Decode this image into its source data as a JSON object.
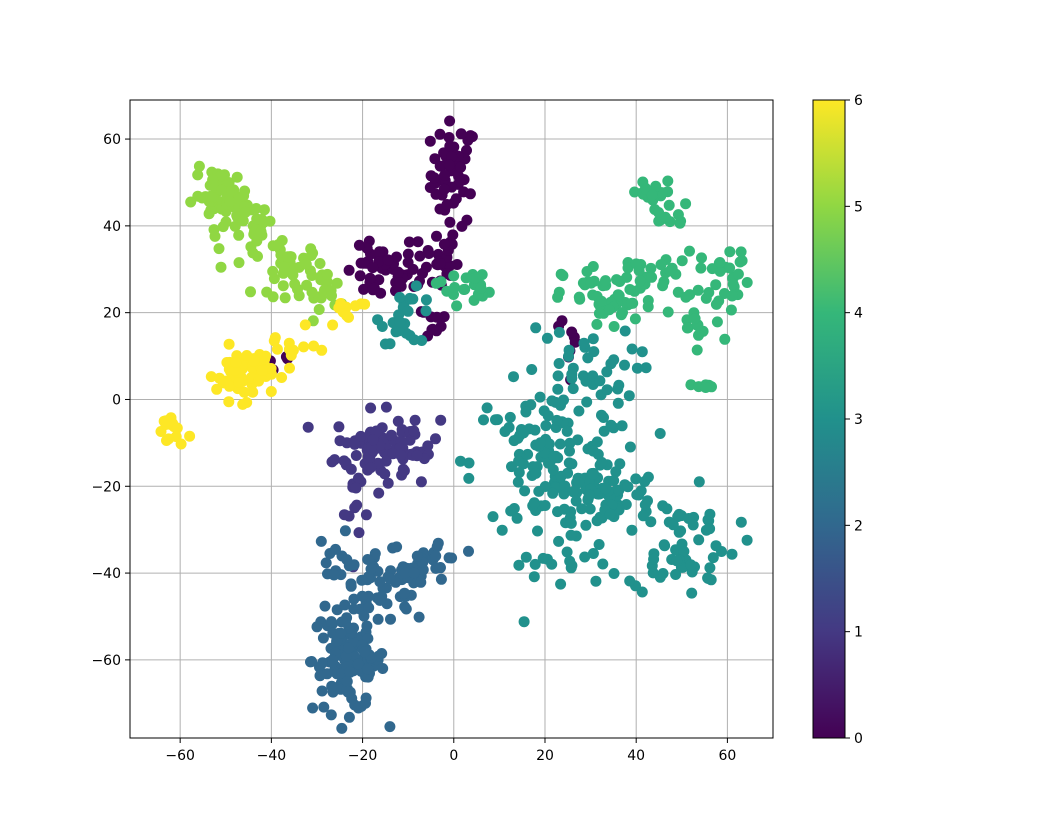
{
  "chart_data": {
    "type": "scatter",
    "title": "",
    "xlabel": "",
    "ylabel": "",
    "xlim": [
      -71,
      70
    ],
    "ylim": [
      -78,
      69
    ],
    "xticks": [
      -60,
      -40,
      -20,
      0,
      20,
      40,
      60
    ],
    "yticks": [
      -60,
      -40,
      -20,
      0,
      20,
      40,
      60
    ],
    "xtick_labels": [
      "−60",
      "−40",
      "−20",
      "0",
      "20",
      "40",
      "60"
    ],
    "ytick_labels": [
      "−60",
      "−40",
      "−20",
      "0",
      "20",
      "40",
      "60"
    ],
    "grid": true,
    "colormap": "viridis",
    "colorbar": {
      "min": 0,
      "max": 6,
      "ticks": [
        0,
        1,
        2,
        3,
        4,
        5,
        6
      ],
      "tick_labels": [
        "0",
        "1",
        "2",
        "3",
        "4",
        "5",
        "6"
      ]
    },
    "clusters": [
      {
        "value": 0,
        "center": [
          0,
          52
        ],
        "spread": [
          2.5,
          6
        ],
        "n": 55
      },
      {
        "value": 0,
        "center": [
          -16,
          29
        ],
        "spread": [
          4,
          3
        ],
        "n": 45
      },
      {
        "value": 0,
        "center": [
          -4,
          32
        ],
        "spread": [
          2.5,
          4
        ],
        "n": 30
      },
      {
        "value": 0,
        "center": [
          -6,
          18
        ],
        "spread": [
          3,
          2
        ],
        "n": 10
      },
      {
        "value": 0,
        "center": [
          -40,
          9
        ],
        "spread": [
          3,
          2
        ],
        "n": 8
      },
      {
        "value": 0,
        "center": [
          26,
          12
        ],
        "spread": [
          3,
          6
        ],
        "n": 8
      },
      {
        "value": 1,
        "center": [
          -18,
          -11
        ],
        "spread": [
          4,
          4
        ],
        "n": 70
      },
      {
        "value": 1,
        "center": [
          -9,
          -10
        ],
        "spread": [
          3,
          3
        ],
        "n": 25
      },
      {
        "value": 1,
        "center": [
          -20,
          -25
        ],
        "spread": [
          2,
          4
        ],
        "n": 12
      },
      {
        "value": 2,
        "center": [
          -23,
          -60
        ],
        "spread": [
          4,
          6
        ],
        "n": 130
      },
      {
        "value": 2,
        "center": [
          -15,
          -44
        ],
        "spread": [
          5,
          4
        ],
        "n": 50
      },
      {
        "value": 2,
        "center": [
          -4,
          -37
        ],
        "spread": [
          3,
          3
        ],
        "n": 25
      },
      {
        "value": 2,
        "center": [
          -26,
          -36
        ],
        "spread": [
          2,
          3
        ],
        "n": 12
      },
      {
        "value": 3,
        "center": [
          -10,
          19
        ],
        "spread": [
          3,
          3
        ],
        "n": 25
      },
      {
        "value": 3,
        "center": [
          20,
          -15
        ],
        "spread": [
          8,
          9
        ],
        "n": 120
      },
      {
        "value": 3,
        "center": [
          33,
          -22
        ],
        "spread": [
          6,
          4
        ],
        "n": 70
      },
      {
        "value": 3,
        "center": [
          50,
          -33
        ],
        "spread": [
          6,
          6
        ],
        "n": 60
      },
      {
        "value": 3,
        "center": [
          28,
          5
        ],
        "spread": [
          6,
          6
        ],
        "n": 45
      },
      {
        "value": 3,
        "center": [
          24,
          -38
        ],
        "spread": [
          5,
          3
        ],
        "n": 15
      },
      {
        "value": 4,
        "center": [
          2,
          26
        ],
        "spread": [
          3,
          2
        ],
        "n": 20
      },
      {
        "value": 4,
        "center": [
          34,
          23
        ],
        "spread": [
          5,
          4
        ],
        "n": 50
      },
      {
        "value": 4,
        "center": [
          44,
          47
        ],
        "spread": [
          3,
          2
        ],
        "n": 20
      },
      {
        "value": 4,
        "center": [
          47,
          42
        ],
        "spread": [
          2,
          1
        ],
        "n": 10
      },
      {
        "value": 4,
        "center": [
          45,
          28
        ],
        "spread": [
          4,
          3
        ],
        "n": 25
      },
      {
        "value": 4,
        "center": [
          60,
          29
        ],
        "spread": [
          3,
          3
        ],
        "n": 25
      },
      {
        "value": 4,
        "center": [
          53,
          17
        ],
        "spread": [
          3,
          3
        ],
        "n": 15
      },
      {
        "value": 4,
        "center": [
          55,
          3
        ],
        "spread": [
          1,
          1
        ],
        "n": 6
      },
      {
        "value": 5,
        "center": [
          -51,
          47
        ],
        "spread": [
          3,
          3
        ],
        "n": 60
      },
      {
        "value": 5,
        "center": [
          -43,
          40
        ],
        "spread": [
          3,
          3
        ],
        "n": 30
      },
      {
        "value": 5,
        "center": [
          -36,
          30
        ],
        "spread": [
          4,
          3
        ],
        "n": 40
      },
      {
        "value": 5,
        "center": [
          -27,
          24
        ],
        "spread": [
          3,
          2
        ],
        "n": 15
      },
      {
        "value": 6,
        "center": [
          -46,
          6
        ],
        "spread": [
          3,
          3
        ],
        "n": 70
      },
      {
        "value": 6,
        "center": [
          -62,
          -7
        ],
        "spread": [
          1.5,
          2
        ],
        "n": 15
      },
      {
        "value": 6,
        "center": [
          -36,
          12
        ],
        "spread": [
          3,
          2
        ],
        "n": 12
      },
      {
        "value": 6,
        "center": [
          -23,
          20
        ],
        "spread": [
          3,
          2
        ],
        "n": 10
      }
    ]
  }
}
